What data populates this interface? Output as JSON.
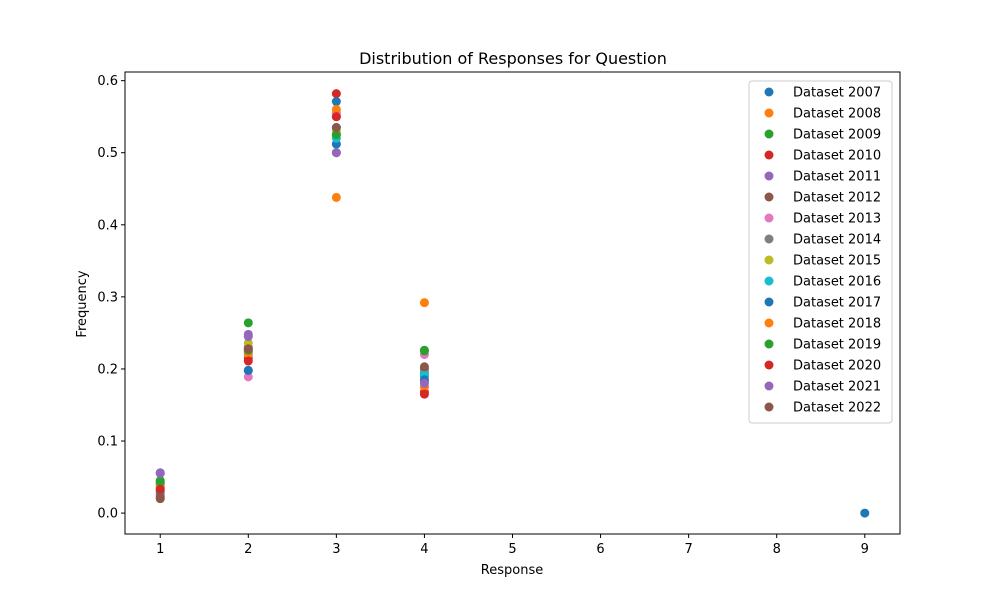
{
  "chart_data": {
    "type": "scatter",
    "title": "Distribution of Responses for Question",
    "xlabel": "Response",
    "ylabel": "Frequency",
    "xlim": [
      0.6,
      9.4
    ],
    "ylim": [
      -0.029,
      0.612
    ],
    "xticks": [
      1,
      2,
      3,
      4,
      5,
      6,
      7,
      8,
      9
    ],
    "yticks": [
      0.0,
      0.1,
      0.2,
      0.3,
      0.4,
      0.5,
      0.6
    ],
    "ytick_labels": [
      "0.0",
      "0.1",
      "0.2",
      "0.3",
      "0.4",
      "0.5",
      "0.6"
    ],
    "grid": false,
    "legend_position": "top-right",
    "series": [
      {
        "name": "Dataset 2007",
        "color": "#1f77b4",
        "points": [
          [
            1,
            0.04
          ],
          [
            2,
            0.198
          ],
          [
            3,
            0.512
          ],
          [
            4,
            0.19
          ],
          [
            9,
            0.0
          ]
        ]
      },
      {
        "name": "Dataset 2008",
        "color": "#ff7f0e",
        "points": [
          [
            1,
            0.025
          ],
          [
            2,
            0.224
          ],
          [
            3,
            0.438
          ],
          [
            4,
            0.292
          ]
        ]
      },
      {
        "name": "Dataset 2009",
        "color": "#2ca02c",
        "points": [
          [
            1,
            0.045
          ],
          [
            2,
            0.264
          ],
          [
            3,
            0.525
          ],
          [
            4,
            0.226
          ]
        ]
      },
      {
        "name": "Dataset 2010",
        "color": "#d62728",
        "points": [
          [
            1,
            0.035
          ],
          [
            2,
            0.215
          ],
          [
            3,
            0.582
          ],
          [
            4,
            0.168
          ]
        ]
      },
      {
        "name": "Dataset 2011",
        "color": "#9467bd",
        "points": [
          [
            1,
            0.056
          ],
          [
            2,
            0.248
          ],
          [
            3,
            0.5
          ],
          [
            4,
            0.182
          ]
        ]
      },
      {
        "name": "Dataset 2012",
        "color": "#8c564b",
        "points": [
          [
            1,
            0.02
          ],
          [
            2,
            0.228
          ],
          [
            3,
            0.55
          ],
          [
            4,
            0.2
          ]
        ]
      },
      {
        "name": "Dataset 2013",
        "color": "#e377c2",
        "points": [
          [
            1,
            0.03
          ],
          [
            2,
            0.189
          ],
          [
            3,
            0.555
          ],
          [
            4,
            0.22
          ]
        ]
      },
      {
        "name": "Dataset 2014",
        "color": "#7f7f7f",
        "points": [
          [
            1,
            0.028
          ],
          [
            2,
            0.23
          ],
          [
            3,
            0.535
          ],
          [
            4,
            0.195
          ]
        ]
      },
      {
        "name": "Dataset 2015",
        "color": "#bcbd22",
        "points": [
          [
            1,
            0.038
          ],
          [
            2,
            0.236
          ],
          [
            3,
            0.53
          ],
          [
            4,
            0.175
          ]
        ]
      },
      {
        "name": "Dataset 2016",
        "color": "#17becf",
        "points": [
          [
            1,
            0.042
          ],
          [
            2,
            0.222
          ],
          [
            3,
            0.52
          ],
          [
            4,
            0.192
          ]
        ]
      },
      {
        "name": "Dataset 2017",
        "color": "#1f77b4",
        "points": [
          [
            1,
            0.032
          ],
          [
            2,
            0.198
          ],
          [
            3,
            0.571
          ],
          [
            4,
            0.185
          ]
        ]
      },
      {
        "name": "Dataset 2018",
        "color": "#ff7f0e",
        "points": [
          [
            1,
            0.037
          ],
          [
            2,
            0.22
          ],
          [
            3,
            0.56
          ],
          [
            4,
            0.175
          ]
        ]
      },
      {
        "name": "Dataset 2019",
        "color": "#2ca02c",
        "points": [
          [
            1,
            0.043
          ],
          [
            2,
            0.226
          ],
          [
            3,
            0.525
          ],
          [
            4,
            0.225
          ]
        ]
      },
      {
        "name": "Dataset 2020",
        "color": "#d62728",
        "points": [
          [
            1,
            0.033
          ],
          [
            2,
            0.211
          ],
          [
            3,
            0.55
          ],
          [
            4,
            0.165
          ]
        ]
      },
      {
        "name": "Dataset 2021",
        "color": "#9467bd",
        "points": [
          [
            1,
            0.055
          ],
          [
            2,
            0.245
          ],
          [
            3,
            0.5
          ],
          [
            4,
            0.18
          ]
        ]
      },
      {
        "name": "Dataset 2022",
        "color": "#8c564b",
        "points": [
          [
            1,
            0.022
          ],
          [
            2,
            0.228
          ],
          [
            3,
            0.535
          ],
          [
            4,
            0.203
          ]
        ]
      }
    ]
  }
}
